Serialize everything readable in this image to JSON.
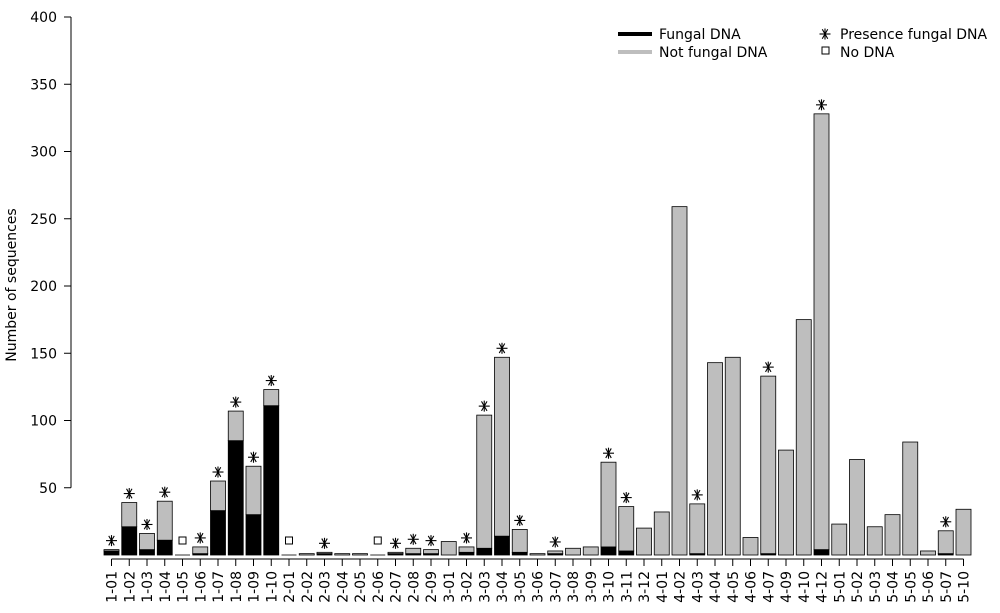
{
  "chart_data": {
    "type": "bar",
    "stacked": true,
    "title": "",
    "xlabel": "",
    "ylabel": "Number of sequences",
    "ylim": [
      0,
      400
    ],
    "yticks": [
      50,
      100,
      150,
      200,
      250,
      300,
      350,
      400
    ],
    "categories": [
      "1-01",
      "1-02",
      "1-03",
      "1-04",
      "1-05",
      "1-06",
      "1-07",
      "1-08",
      "1-09",
      "1-10",
      "2-01",
      "2-02",
      "2-03",
      "2-04",
      "2-05",
      "2-06",
      "2-07",
      "2-08",
      "2-09",
      "3-01",
      "3-02",
      "3-03",
      "3-04",
      "3-05",
      "3-06",
      "3-07",
      "3-08",
      "3-09",
      "3-10",
      "3-11",
      "3-12",
      "4-01",
      "4-02",
      "4-03",
      "4-04",
      "4-05",
      "4-06",
      "4-07",
      "4-09",
      "4-10",
      "4-12",
      "5-01",
      "5-02",
      "5-03",
      "5-04",
      "5-05",
      "5-06",
      "5-07",
      "5-10"
    ],
    "series": [
      {
        "name": "Fungal DNA",
        "color": "#000000",
        "values": [
          3,
          21,
          4,
          11,
          0,
          1,
          33,
          85,
          30,
          111,
          0,
          0,
          1,
          0,
          0,
          0,
          1,
          1,
          1,
          0,
          2,
          5,
          14,
          2,
          0,
          1,
          0,
          0,
          6,
          3,
          0,
          0,
          0,
          1,
          0,
          0,
          0,
          1,
          0,
          0,
          4,
          0,
          0,
          0,
          0,
          0,
          0,
          1,
          0
        ]
      },
      {
        "name": "Not fungal DNA",
        "color": "#bebebe",
        "values": [
          1,
          18,
          12,
          29,
          0,
          5,
          22,
          22,
          36,
          12,
          0,
          1,
          1,
          1,
          1,
          0,
          1,
          4,
          3,
          10,
          4,
          99,
          133,
          17,
          1,
          2,
          5,
          6,
          63,
          33,
          20,
          32,
          259,
          37,
          143,
          147,
          13,
          132,
          78,
          175,
          324,
          23,
          71,
          21,
          30,
          84,
          3,
          17,
          34
        ]
      }
    ],
    "presence_fungal_dna": [
      "1-01",
      "1-02",
      "1-03",
      "1-04",
      "1-06",
      "1-07",
      "1-08",
      "1-09",
      "1-10",
      "2-03",
      "2-07",
      "2-08",
      "2-09",
      "3-02",
      "3-03",
      "3-04",
      "3-05",
      "3-07",
      "3-10",
      "3-11",
      "4-03",
      "4-07",
      "4-12",
      "5-07"
    ],
    "no_dna": [
      "1-05",
      "2-01",
      "2-06"
    ],
    "legend": {
      "placement": "top-right",
      "entries": [
        {
          "label": "Fungal DNA",
          "symbol": "thick-line",
          "color": "#000000"
        },
        {
          "label": "Not fungal DNA",
          "symbol": "thick-line",
          "color": "#bebebe"
        },
        {
          "label": "Presence fungal DNA",
          "symbol": "asterisk-icon"
        },
        {
          "label": "No DNA",
          "symbol": "open-square-icon"
        }
      ]
    },
    "grid": false
  }
}
